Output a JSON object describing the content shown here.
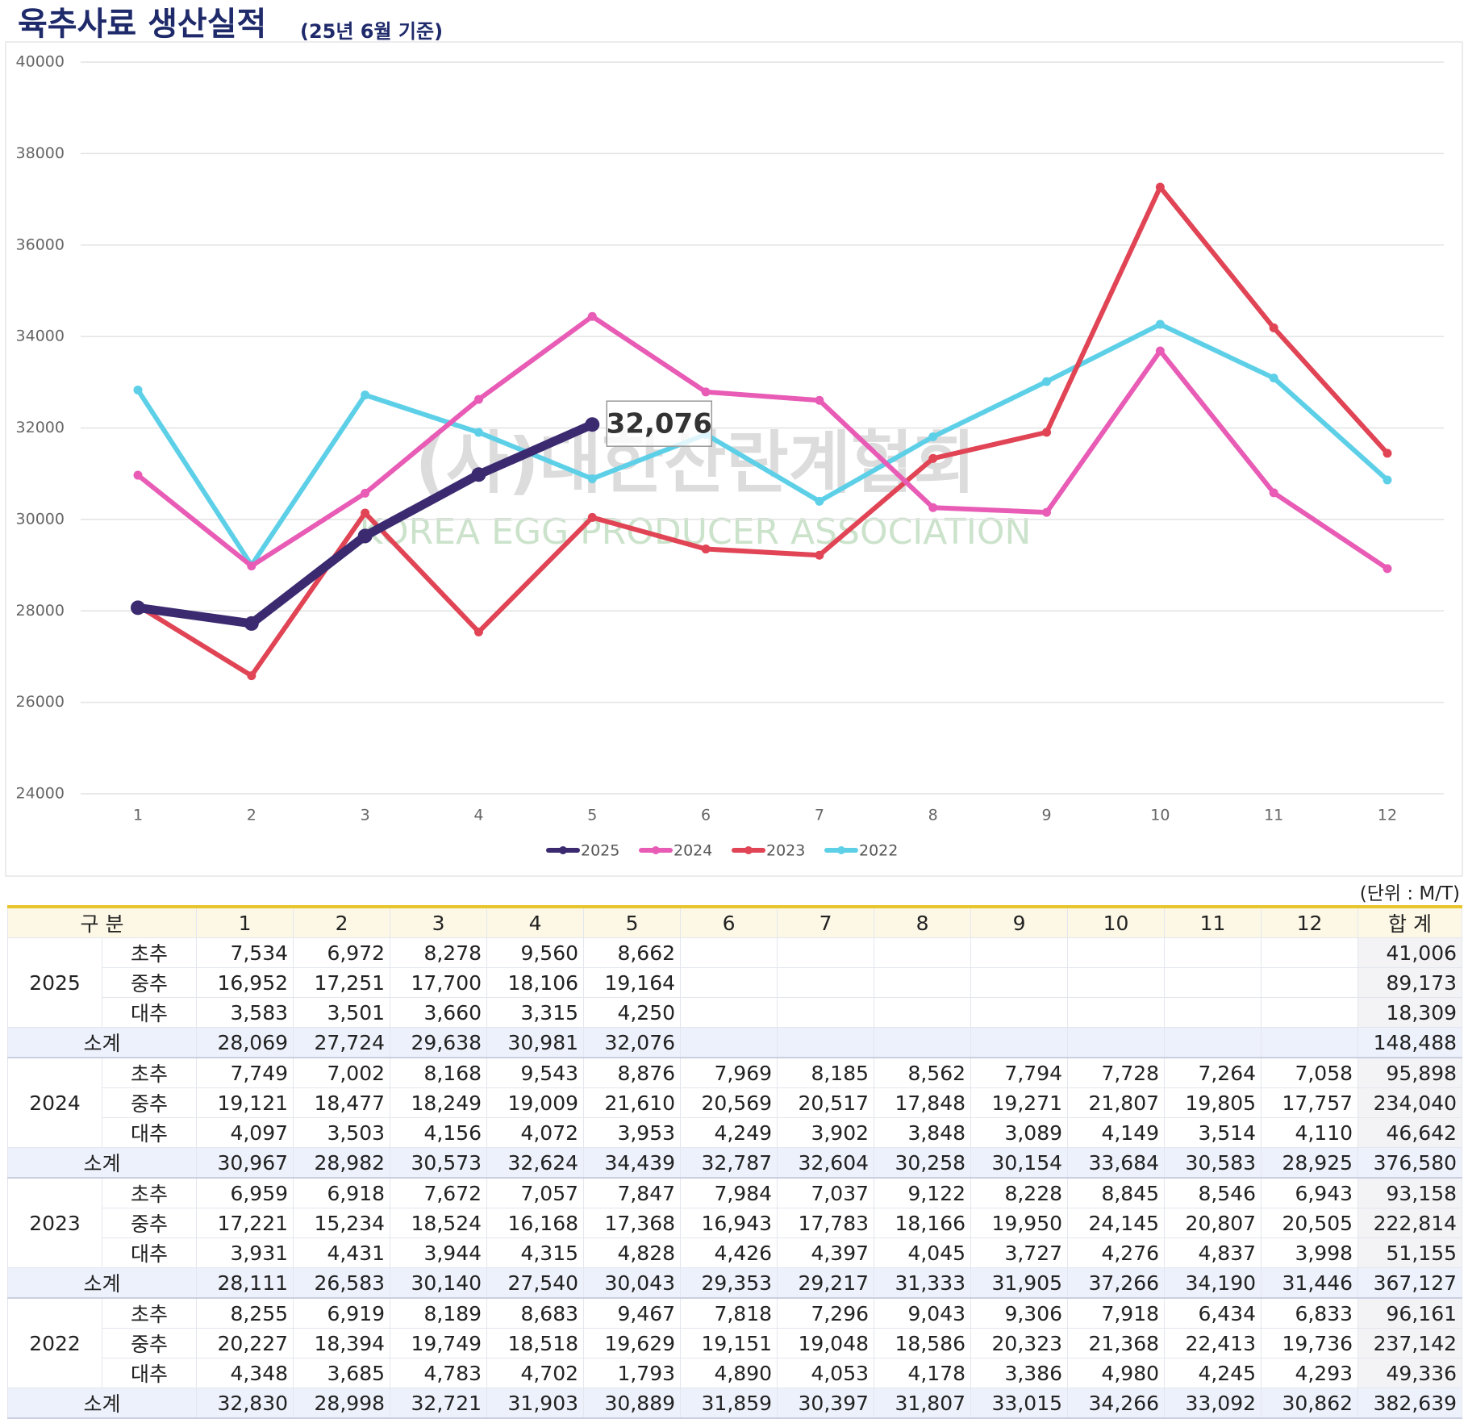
{
  "chart_data": {
    "type": "line",
    "title": "육추사료 생산실적",
    "subtitle": "(25년 6월 기준)",
    "watermark": [
      "(사)대한산란계협회",
      "KOREA EGG PRODUCER ASSOCIATION"
    ],
    "categories": [
      "1",
      "2",
      "3",
      "4",
      "5",
      "6",
      "7",
      "8",
      "9",
      "10",
      "11",
      "12"
    ],
    "ylim": [
      24000,
      40000
    ],
    "yticks": [
      24000,
      26000,
      28000,
      30000,
      32000,
      34000,
      36000,
      38000,
      40000
    ],
    "grid": true,
    "legend": "bottom",
    "series": [
      {
        "name": "2025",
        "color": "#3b2a70",
        "values": [
          28069,
          27724,
          29638,
          30981,
          32076,
          null,
          null,
          null,
          null,
          null,
          null,
          null
        ],
        "value_labels": [
          null,
          null,
          null,
          null,
          "32,076",
          null,
          null,
          null,
          null,
          null,
          null,
          null
        ]
      },
      {
        "name": "2024",
        "color": "#e85cb6",
        "values": [
          30967,
          28982,
          30573,
          32624,
          34439,
          32787,
          32604,
          30258,
          30154,
          33684,
          30583,
          28925
        ]
      },
      {
        "name": "2023",
        "color": "#e04455",
        "values": [
          28111,
          26583,
          30140,
          27540,
          30043,
          29353,
          29217,
          31333,
          31905,
          37266,
          34190,
          31446
        ]
      },
      {
        "name": "2022",
        "color": "#5dd0e8",
        "values": [
          32830,
          28998,
          32721,
          31903,
          30889,
          31859,
          30397,
          31807,
          33015,
          34266,
          33092,
          30862
        ]
      }
    ]
  },
  "table": {
    "unit": "(단위 : M/T)",
    "header": [
      "구 분",
      "1",
      "2",
      "3",
      "4",
      "5",
      "6",
      "7",
      "8",
      "9",
      "10",
      "11",
      "12",
      "합 계"
    ],
    "groups": [
      {
        "year": "2025",
        "rows": [
          {
            "label": "초추",
            "cells": [
              "7,534",
              "6,972",
              "8,278",
              "9,560",
              "8,662"
            ],
            "total": "41,006"
          },
          {
            "label": "중추",
            "cells": [
              "16,952",
              "17,251",
              "17,700",
              "18,106",
              "19,164"
            ],
            "total": "89,173"
          },
          {
            "label": "대추",
            "cells": [
              "3,583",
              "3,501",
              "3,660",
              "3,315",
              "4,250"
            ],
            "total": "18,309"
          }
        ],
        "subtotal": {
          "label": "소계",
          "cells": [
            "28,069",
            "27,724",
            "29,638",
            "30,981",
            "32,076"
          ],
          "total": "148,488"
        }
      },
      {
        "year": "2024",
        "rows": [
          {
            "label": "초추",
            "cells": [
              "7,749",
              "7,002",
              "8,168",
              "9,543",
              "8,876",
              "7,969",
              "8,185",
              "8,562",
              "7,794",
              "7,728",
              "7,264",
              "7,058"
            ],
            "total": "95,898"
          },
          {
            "label": "중추",
            "cells": [
              "19,121",
              "18,477",
              "18,249",
              "19,009",
              "21,610",
              "20,569",
              "20,517",
              "17,848",
              "19,271",
              "21,807",
              "19,805",
              "17,757"
            ],
            "total": "234,040"
          },
          {
            "label": "대추",
            "cells": [
              "4,097",
              "3,503",
              "4,156",
              "4,072",
              "3,953",
              "4,249",
              "3,902",
              "3,848",
              "3,089",
              "4,149",
              "3,514",
              "4,110"
            ],
            "total": "46,642"
          }
        ],
        "subtotal": {
          "label": "소계",
          "cells": [
            "30,967",
            "28,982",
            "30,573",
            "32,624",
            "34,439",
            "32,787",
            "32,604",
            "30,258",
            "30,154",
            "33,684",
            "30,583",
            "28,925"
          ],
          "total": "376,580"
        }
      },
      {
        "year": "2023",
        "rows": [
          {
            "label": "초추",
            "cells": [
              "6,959",
              "6,918",
              "7,672",
              "7,057",
              "7,847",
              "7,984",
              "7,037",
              "9,122",
              "8,228",
              "8,845",
              "8,546",
              "6,943"
            ],
            "total": "93,158"
          },
          {
            "label": "중추",
            "cells": [
              "17,221",
              "15,234",
              "18,524",
              "16,168",
              "17,368",
              "16,943",
              "17,783",
              "18,166",
              "19,950",
              "24,145",
              "20,807",
              "20,505"
            ],
            "total": "222,814"
          },
          {
            "label": "대추",
            "cells": [
              "3,931",
              "4,431",
              "3,944",
              "4,315",
              "4,828",
              "4,426",
              "4,397",
              "4,045",
              "3,727",
              "4,276",
              "4,837",
              "3,998"
            ],
            "total": "51,155"
          }
        ],
        "subtotal": {
          "label": "소계",
          "cells": [
            "28,111",
            "26,583",
            "30,140",
            "27,540",
            "30,043",
            "29,353",
            "29,217",
            "31,333",
            "31,905",
            "37,266",
            "34,190",
            "31,446"
          ],
          "total": "367,127"
        }
      },
      {
        "year": "2022",
        "rows": [
          {
            "label": "초추",
            "cells": [
              "8,255",
              "6,919",
              "8,189",
              "8,683",
              "9,467",
              "7,818",
              "7,296",
              "9,043",
              "9,306",
              "7,918",
              "6,434",
              "6,833"
            ],
            "total": "96,161"
          },
          {
            "label": "중추",
            "cells": [
              "20,227",
              "18,394",
              "19,749",
              "18,518",
              "19,629",
              "19,151",
              "19,048",
              "18,586",
              "20,323",
              "21,368",
              "22,413",
              "19,736"
            ],
            "total": "237,142"
          },
          {
            "label": "대추",
            "cells": [
              "4,348",
              "3,685",
              "4,783",
              "4,702",
              "1,793",
              "4,890",
              "4,053",
              "4,178",
              "3,386",
              "4,980",
              "4,245",
              "4,293"
            ],
            "total": "49,336"
          }
        ],
        "subtotal": {
          "label": "소계",
          "cells": [
            "32,830",
            "28,998",
            "32,721",
            "31,903",
            "30,889",
            "31,859",
            "30,397",
            "31,807",
            "33,015",
            "34,266",
            "33,092",
            "30,862"
          ],
          "total": "382,639"
        }
      }
    ]
  }
}
